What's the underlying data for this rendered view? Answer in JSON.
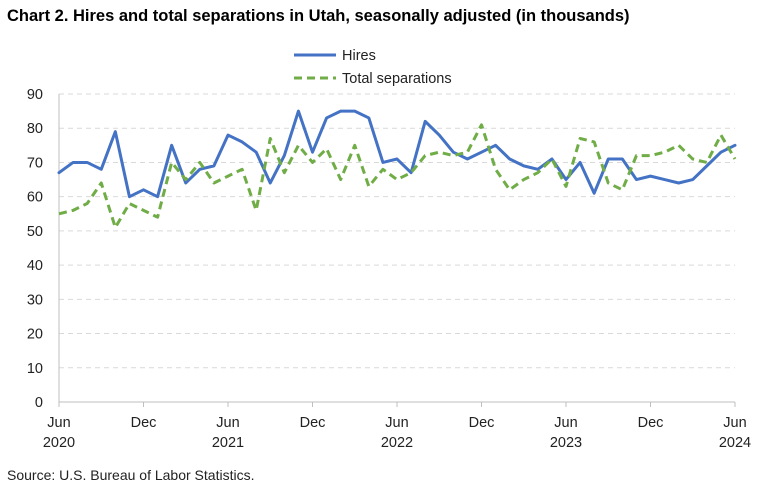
{
  "title": "Chart 2. Hires and total separations in Utah, seasonally adjusted (in thousands)",
  "source": "Source: U.S. Bureau of Labor Statistics.",
  "chart_data": {
    "type": "line",
    "title": "Chart 2. Hires and total separations in Utah, seasonally adjusted (in thousands)",
    "x": [
      "2020-06",
      "2020-07",
      "2020-08",
      "2020-09",
      "2020-10",
      "2020-11",
      "2020-12",
      "2021-01",
      "2021-02",
      "2021-03",
      "2021-04",
      "2021-05",
      "2021-06",
      "2021-07",
      "2021-08",
      "2021-09",
      "2021-10",
      "2021-11",
      "2021-12",
      "2022-01",
      "2022-02",
      "2022-03",
      "2022-04",
      "2022-05",
      "2022-06",
      "2022-07",
      "2022-08",
      "2022-09",
      "2022-10",
      "2022-11",
      "2022-12",
      "2023-01",
      "2023-02",
      "2023-03",
      "2023-04",
      "2023-05",
      "2023-06",
      "2023-07",
      "2023-08",
      "2023-09",
      "2023-10",
      "2023-11",
      "2023-12",
      "2024-01",
      "2024-02",
      "2024-03",
      "2024-04",
      "2024-05",
      "2024-06"
    ],
    "series": [
      {
        "name": "Hires",
        "color": "#4472C4",
        "dash": "solid",
        "values": [
          67,
          70,
          70,
          68,
          79,
          60,
          62,
          60,
          75,
          64,
          68,
          69,
          78,
          76,
          73,
          64,
          72,
          85,
          73,
          83,
          85,
          85,
          83,
          70,
          71,
          67,
          82,
          78,
          73,
          71,
          73,
          75,
          71,
          69,
          68,
          71,
          65,
          70,
          61,
          71,
          71,
          65,
          66,
          65,
          64,
          65,
          69,
          73,
          75
        ]
      },
      {
        "name": "Total separations",
        "color": "#70AD47",
        "dash": "dashed",
        "values": [
          55,
          56,
          58,
          64,
          51,
          58,
          56,
          54,
          70,
          65,
          70,
          64,
          66,
          68,
          56,
          77,
          67,
          75,
          70,
          74,
          65,
          75,
          63,
          68,
          65,
          67,
          72,
          73,
          72,
          73,
          81,
          68,
          62,
          65,
          67,
          71,
          63,
          77,
          76,
          64,
          62,
          72,
          72,
          73,
          75,
          71,
          70,
          78,
          71
        ]
      }
    ],
    "x_tick_labels": [
      {
        "month": "Jun",
        "year": "2020"
      },
      {
        "month": "Dec",
        "year": ""
      },
      {
        "month": "Jun",
        "year": "2021"
      },
      {
        "month": "Dec",
        "year": ""
      },
      {
        "month": "Jun",
        "year": "2022"
      },
      {
        "month": "Dec",
        "year": ""
      },
      {
        "month": "Jun",
        "year": "2023"
      },
      {
        "month": "Dec",
        "year": ""
      },
      {
        "month": "Jun",
        "year": "2024"
      }
    ],
    "y_ticks": [
      0,
      10,
      20,
      30,
      40,
      50,
      60,
      70,
      80,
      90
    ],
    "ylim": [
      0,
      90
    ],
    "xlabel": "",
    "ylabel": "",
    "grid": "horizontal dashed",
    "legend": "top-center"
  }
}
